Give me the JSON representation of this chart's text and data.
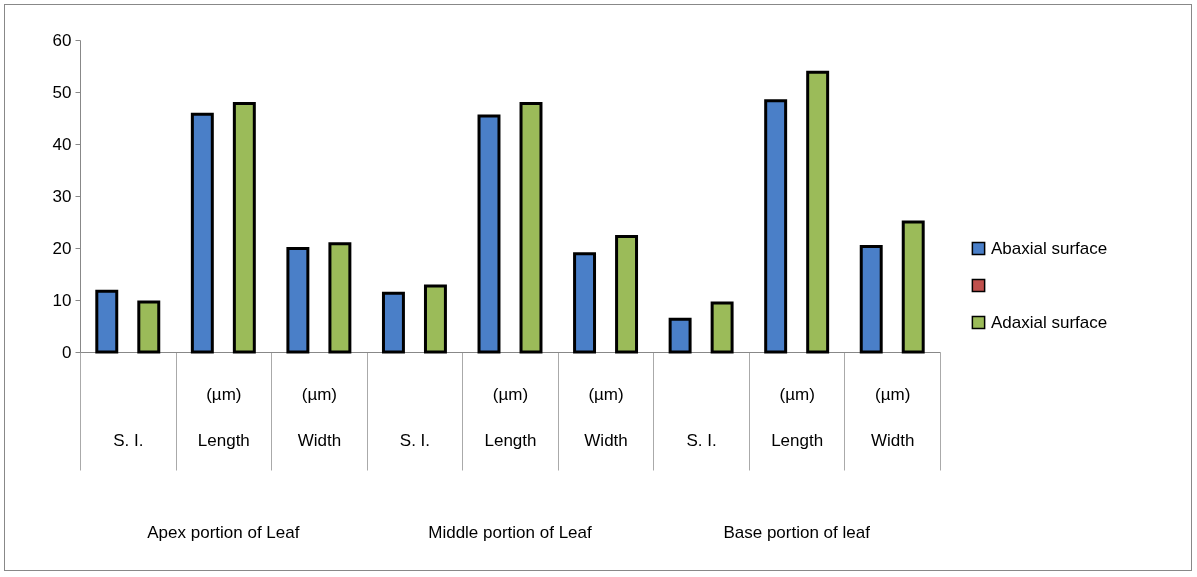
{
  "chart_data": {
    "type": "bar",
    "categories": [
      "S. I.",
      "(µm)\nLength",
      "(µm)\nWidth",
      "S. I.",
      "(µm)\nLength",
      "(µm)\nWidth",
      "S. I.",
      "(µm)\nLength",
      "(µm)\nWidth"
    ],
    "series": [
      {
        "name": "Abaxial surface",
        "color": "#4a7fc8",
        "values": [
          11.7,
          45.7,
          19.9,
          11.3,
          45.4,
          18.9,
          6.3,
          48.3,
          20.3
        ]
      },
      {
        "color": "#c0504d",
        "values": [
          null,
          null,
          null,
          null,
          null,
          null,
          null,
          null,
          null
        ]
      },
      {
        "name": "Adaxial surface",
        "color": "#9bbb59",
        "values": [
          9.6,
          47.8,
          20.8,
          12.7,
          47.8,
          22.2,
          9.4,
          53.8,
          25.0
        ]
      }
    ],
    "annotations": [
      "Apex portion of Leaf",
      "Middle portion of Leaf",
      "Base portion of leaf"
    ],
    "ylim": [
      0,
      60
    ],
    "yticks": [
      0,
      10,
      20,
      30,
      40,
      50,
      60
    ],
    "grid": false,
    "legend": "right"
  }
}
